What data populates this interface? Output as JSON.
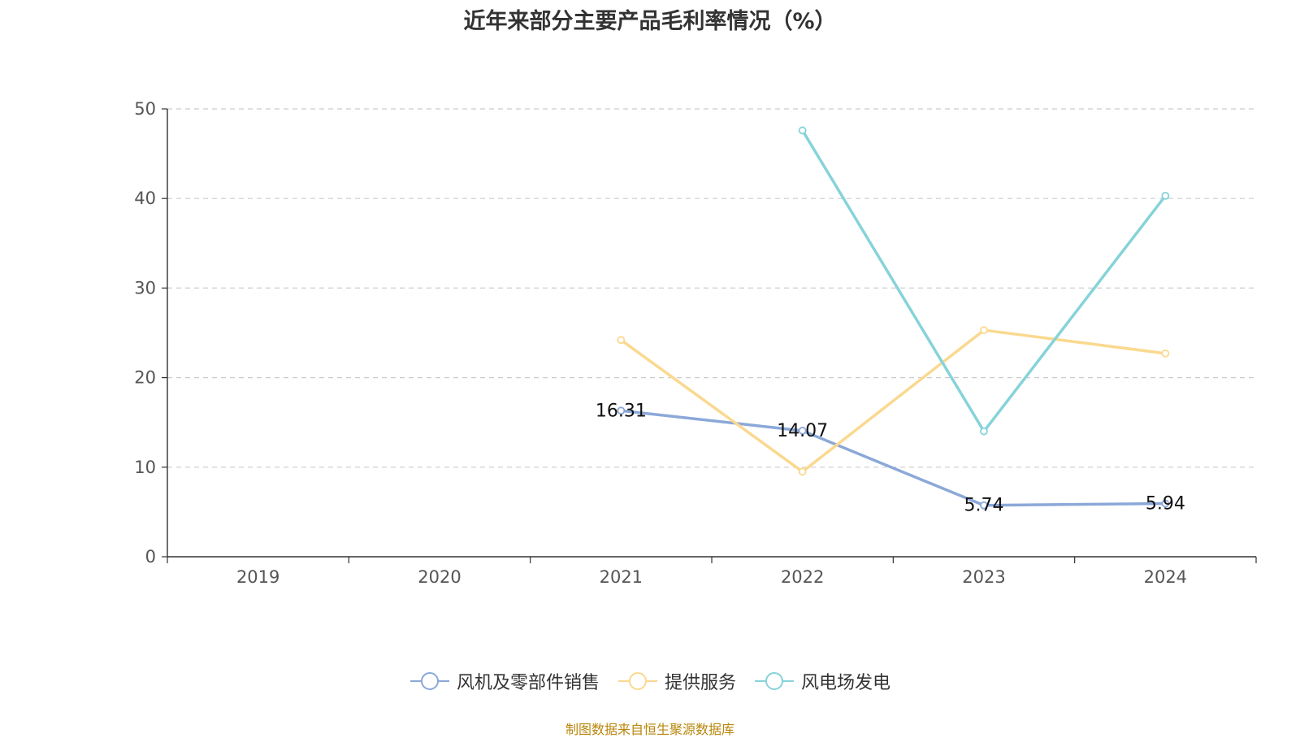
{
  "chart_data": {
    "type": "line",
    "title": "近年来部分主要产品毛利率情况（%）",
    "xlabel": "",
    "ylabel": "",
    "categories": [
      "2019",
      "2020",
      "2021",
      "2022",
      "2023",
      "2024"
    ],
    "ylim": [
      0,
      50
    ],
    "yticks": [
      0,
      10,
      20,
      30,
      40,
      50
    ],
    "grid": "horizontal dashed",
    "legend_position": "bottom",
    "series": [
      {
        "name": "风机及零部件销售",
        "color": "#8ba8d8",
        "values": [
          null,
          null,
          16.31,
          14.07,
          5.74,
          5.94
        ],
        "labels": [
          null,
          null,
          "16.31",
          "14.07",
          "5.74",
          "5.94"
        ]
      },
      {
        "name": "提供服务",
        "color": "#fad98f",
        "values": [
          null,
          null,
          24.2,
          9.5,
          25.3,
          22.7
        ]
      },
      {
        "name": "风电场发电",
        "color": "#86d3d9",
        "values": [
          null,
          null,
          null,
          47.6,
          14.0,
          40.3
        ]
      }
    ]
  },
  "footer": {
    "source": "制图数据来自恒生聚源数据库"
  }
}
